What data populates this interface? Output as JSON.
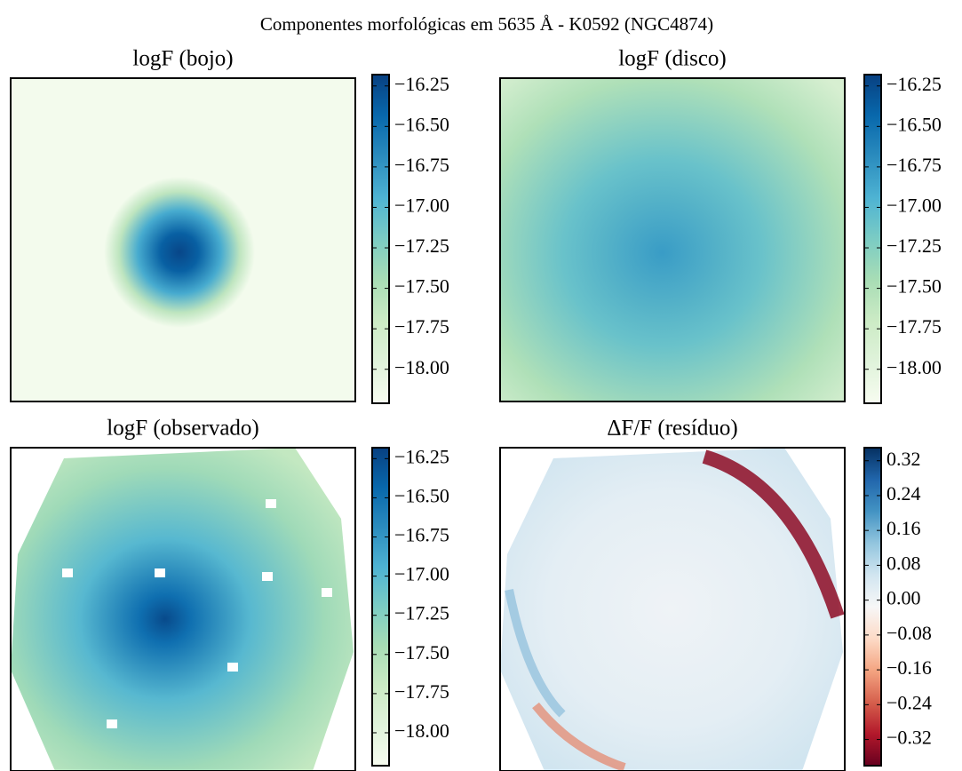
{
  "title": "Componentes morfológicas em 5635 Å - K0592 (NGC4874)",
  "chart_data": [
    {
      "type": "image",
      "title": "logF (bojo)",
      "colormap": [
        "#f7fcf0",
        "#e0f3db",
        "#ccebc5",
        "#a8ddb5",
        "#7bccc4",
        "#4eb3d3",
        "#2b8cbe",
        "#0868ac",
        "#084081"
      ],
      "clim": [
        -18.21,
        -16.18
      ],
      "ticks": [
        {
          "value": -16.25,
          "label": "−16.25"
        },
        {
          "value": -16.5,
          "label": "−16.50"
        },
        {
          "value": -16.75,
          "label": "−16.75"
        },
        {
          "value": -17,
          "label": "−17.00"
        },
        {
          "value": -17.25,
          "label": "−17.25"
        },
        {
          "value": -17.5,
          "label": "−17.50"
        },
        {
          "value": -17.75,
          "label": "−17.75"
        },
        {
          "value": -18,
          "label": "−18.00"
        }
      ]
    },
    {
      "type": "image",
      "title": "logF (disco)",
      "colormap": [
        "#f7fcf0",
        "#e0f3db",
        "#ccebc5",
        "#a8ddb5",
        "#7bccc4",
        "#4eb3d3",
        "#2b8cbe",
        "#0868ac",
        "#084081"
      ],
      "clim": [
        -18.21,
        -16.18
      ],
      "ticks": [
        {
          "value": -16.25,
          "label": "−16.25"
        },
        {
          "value": -16.5,
          "label": "−16.50"
        },
        {
          "value": -16.75,
          "label": "−16.75"
        },
        {
          "value": -17,
          "label": "−17.00"
        },
        {
          "value": -17.25,
          "label": "−17.25"
        },
        {
          "value": -17.5,
          "label": "−17.50"
        },
        {
          "value": -17.75,
          "label": "−17.75"
        },
        {
          "value": -18,
          "label": "−18.00"
        }
      ]
    },
    {
      "type": "image",
      "title": "logF (observado)",
      "colormap": [
        "#f7fcf0",
        "#e0f3db",
        "#ccebc5",
        "#a8ddb5",
        "#7bccc4",
        "#4eb3d3",
        "#2b8cbe",
        "#0868ac",
        "#084081"
      ],
      "clim": [
        -18.21,
        -16.18
      ],
      "ticks": [
        {
          "value": -16.25,
          "label": "−16.25"
        },
        {
          "value": -16.5,
          "label": "−16.50"
        },
        {
          "value": -16.75,
          "label": "−16.75"
        },
        {
          "value": -17,
          "label": "−17.00"
        },
        {
          "value": -17.25,
          "label": "−17.25"
        },
        {
          "value": -17.5,
          "label": "−17.50"
        },
        {
          "value": -17.75,
          "label": "−17.75"
        },
        {
          "value": -18,
          "label": "−18.00"
        }
      ]
    },
    {
      "type": "image",
      "title": "ΔF/F (resíduo)",
      "colormap": [
        "#67001f",
        "#b2182b",
        "#d6604d",
        "#f4a582",
        "#fddbc7",
        "#f7f7f7",
        "#d1e5f0",
        "#92c5de",
        "#4393c3",
        "#2166ac",
        "#053061"
      ],
      "clim": [
        -0.38,
        0.35
      ],
      "ticks": [
        0.32,
        0.24,
        0.16,
        0.08,
        {
          "value": 0,
          "label": "0.00"
        },
        {
          "value": -0.08,
          "label": "−0.08"
        },
        {
          "value": -0.16,
          "label": "−0.16"
        },
        {
          "value": -0.24,
          "label": "−0.24"
        },
        {
          "value": -0.32,
          "label": "−0.32"
        }
      ]
    }
  ]
}
